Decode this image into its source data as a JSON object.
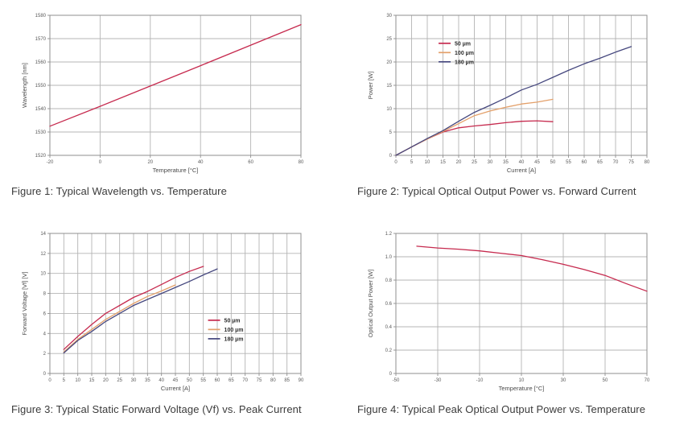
{
  "style": {
    "background": "#ffffff",
    "grid_color": "#b4b4b4",
    "axis_color": "#8f8f8f",
    "tick_label_color": "#5a5a5a",
    "axis_label_color": "#4a4a4a",
    "legend_text_color": "#2d2d2d",
    "caption_color": "#3b3b3b",
    "series_red": "#c62a4e",
    "series_orange": "#e3a06a",
    "series_navy": "#45477e"
  },
  "chart_data": [
    {
      "type": "line",
      "title": "Figure 1: Typical Wavelength vs. Temperature",
      "xlabel": "Temperature [°C]",
      "ylabel": "Wavelength [nm]",
      "xlim": [
        -20,
        80
      ],
      "ylim": [
        1520,
        1580
      ],
      "xticks": [
        -20,
        0,
        20,
        40,
        60,
        80
      ],
      "yticks": [
        1520,
        1530,
        1540,
        1550,
        1560,
        1570,
        1580
      ],
      "grid": true,
      "legend": null,
      "series": [
        {
          "name": "Wavelength",
          "color": "#c62a4e",
          "x": [
            -20,
            0,
            20,
            40,
            60,
            80
          ],
          "y": [
            1532.5,
            1541.0,
            1549.7,
            1558.4,
            1567.2,
            1576.0
          ]
        }
      ]
    },
    {
      "type": "line",
      "title": "Figure 2: Typical Optical Output Power vs. Forward Current",
      "xlabel": "Current [A]",
      "ylabel": "Power [W]",
      "xlim": [
        0,
        80
      ],
      "ylim": [
        0,
        30
      ],
      "xticks": [
        0,
        5,
        10,
        15,
        20,
        25,
        30,
        35,
        40,
        45,
        50,
        55,
        60,
        65,
        70,
        75,
        80
      ],
      "yticks": [
        0,
        5,
        10,
        15,
        20,
        25,
        30
      ],
      "grid": true,
      "legend": {
        "position": "upper-left",
        "x": 0.17,
        "y": 0.2
      },
      "series": [
        {
          "name": "50 µm",
          "color": "#c62a4e",
          "x": [
            0,
            5,
            10,
            15,
            20,
            25,
            30,
            35,
            40,
            45,
            50
          ],
          "y": [
            0,
            1.8,
            3.5,
            5.0,
            5.9,
            6.3,
            6.6,
            7.0,
            7.3,
            7.4,
            7.2
          ]
        },
        {
          "name": "100 µm",
          "color": "#e3a06a",
          "x": [
            0,
            5,
            10,
            15,
            20,
            25,
            30,
            35,
            40,
            45,
            50
          ],
          "y": [
            0,
            1.8,
            3.5,
            5.1,
            6.8,
            8.5,
            9.5,
            10.3,
            11.0,
            11.4,
            12.0
          ]
        },
        {
          "name": "180 µm",
          "color": "#45477e",
          "x": [
            0,
            5,
            10,
            15,
            20,
            25,
            30,
            35,
            40,
            45,
            50,
            55,
            60,
            65,
            70,
            75
          ],
          "y": [
            0,
            1.8,
            3.6,
            5.3,
            7.3,
            9.2,
            10.7,
            12.3,
            14.0,
            15.2,
            16.7,
            18.2,
            19.6,
            20.8,
            22.1,
            23.3
          ]
        }
      ]
    },
    {
      "type": "line",
      "title": "Figure 3: Typical Static Forward Voltage (Vf) vs. Peak Current",
      "xlabel": "Current [A]",
      "ylabel": "Forward Voltage [Vf] [V]",
      "xlim": [
        0,
        90
      ],
      "ylim": [
        0,
        14
      ],
      "xticks": [
        0,
        5,
        10,
        15,
        20,
        25,
        30,
        35,
        40,
        45,
        50,
        55,
        60,
        65,
        70,
        75,
        80,
        85,
        90
      ],
      "yticks": [
        0,
        2,
        4,
        6,
        8,
        10,
        12,
        14
      ],
      "grid": true,
      "legend": {
        "position": "center-right",
        "x": 0.63,
        "y": 0.62
      },
      "series": [
        {
          "name": "50 µm",
          "color": "#c62a4e",
          "x": [
            5,
            10,
            15,
            20,
            25,
            30,
            35,
            40,
            45,
            50,
            55
          ],
          "y": [
            2.4,
            3.7,
            4.9,
            6.0,
            6.8,
            7.6,
            8.2,
            8.9,
            9.6,
            10.2,
            10.7
          ]
        },
        {
          "name": "100 µm",
          "color": "#e3a06a",
          "x": [
            5,
            10,
            15,
            20,
            25,
            30,
            35,
            40,
            45
          ],
          "y": [
            2.15,
            3.4,
            4.4,
            5.4,
            6.2,
            7.0,
            7.7,
            8.25,
            8.85
          ]
        },
        {
          "name": "180 µm",
          "color": "#45477e",
          "x": [
            5,
            10,
            15,
            20,
            25,
            30,
            35,
            40,
            45,
            50,
            55,
            60
          ],
          "y": [
            2.05,
            3.3,
            4.2,
            5.2,
            6.0,
            6.8,
            7.4,
            8.0,
            8.6,
            9.2,
            9.85,
            10.45
          ]
        }
      ]
    },
    {
      "type": "line",
      "title": "Figure 4: Typical Peak Optical Output Power vs. Temperature",
      "xlabel": "Temperature [°C]",
      "ylabel": "Optical Output Power [W]",
      "xlim": [
        -50,
        70
      ],
      "ylim": [
        0,
        1.2
      ],
      "xticks": [
        -50,
        -30,
        -10,
        10,
        30,
        50,
        70
      ],
      "yticks": [
        "0",
        "0.2",
        "0.4",
        "0.6",
        "0.8",
        "1.0",
        "1.2"
      ],
      "grid": true,
      "legend": null,
      "series": [
        {
          "name": "Peak optical output power",
          "color": "#c62a4e",
          "x": [
            -40,
            -30,
            -20,
            -10,
            0,
            10,
            20,
            30,
            40,
            50,
            60,
            70
          ],
          "y": [
            1.09,
            1.075,
            1.065,
            1.05,
            1.03,
            1.01,
            0.975,
            0.935,
            0.89,
            0.84,
            0.77,
            0.705
          ]
        }
      ]
    }
  ]
}
